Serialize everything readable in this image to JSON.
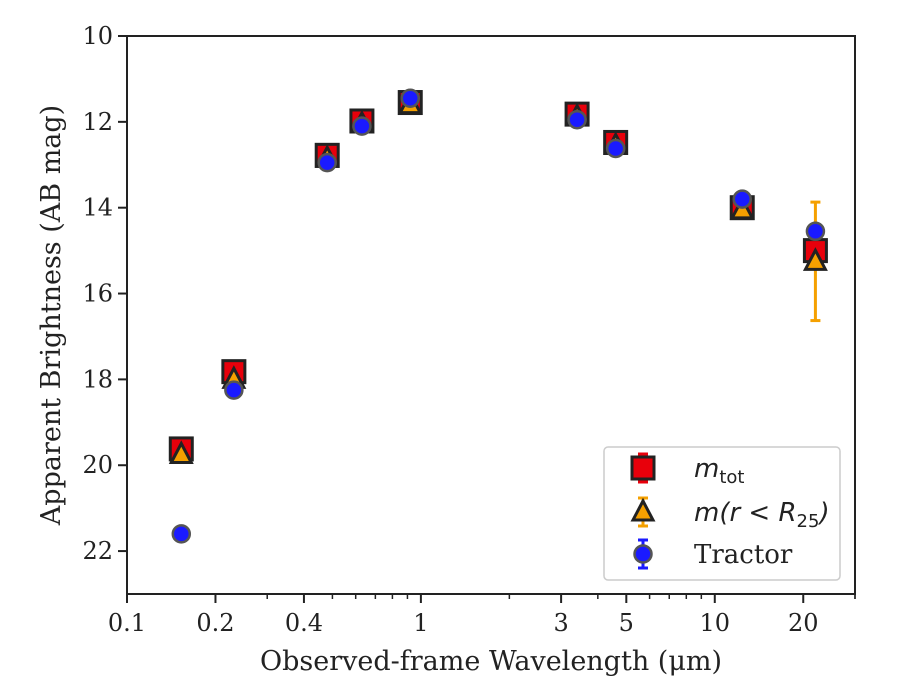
{
  "chart_data": {
    "type": "scatter",
    "xlabel": "Observed-frame Wavelength (μm)",
    "ylabel": "Apparent Brightness (AB mag)",
    "xscale": "log",
    "yinverted": true,
    "xlim": [
      0.1,
      30
    ],
    "ylim": [
      10,
      23
    ],
    "xticks": [
      0.1,
      0.2,
      0.4,
      1,
      3,
      5,
      10,
      20
    ],
    "xtick_labels": [
      "0.1",
      "0.2",
      "0.4",
      "1",
      "3",
      "5",
      "10",
      "20"
    ],
    "yticks": [
      10,
      12,
      14,
      16,
      18,
      20,
      22
    ],
    "ytick_labels": [
      "10",
      "12",
      "14",
      "16",
      "18",
      "20",
      "22"
    ],
    "legend_position": "lower right",
    "series": [
      {
        "name": "m_tot",
        "legend_main": "m",
        "legend_sub": "tot",
        "legend_tail": "",
        "marker": "square",
        "color": "#e8000b",
        "edge": "#222222",
        "x": [
          0.153,
          0.231,
          0.48,
          0.63,
          0.92,
          3.4,
          4.6,
          12.4,
          22.0
        ],
        "y": [
          19.62,
          17.82,
          12.78,
          11.98,
          11.55,
          11.82,
          12.48,
          14.0,
          15.0
        ],
        "yerr": [
          0.05,
          0.05,
          0.03,
          0.03,
          0.03,
          0.03,
          0.03,
          0.05,
          0.1
        ]
      },
      {
        "name": "m(r < R25)",
        "legend_main": "m(r < R",
        "legend_sub": "25",
        "legend_tail": ")",
        "marker": "triangle",
        "color": "#f5a000",
        "edge": "#222222",
        "x": [
          0.153,
          0.231,
          0.48,
          0.63,
          0.92,
          3.4,
          4.6,
          12.4,
          22.0
        ],
        "y": [
          19.75,
          18.0,
          12.85,
          12.05,
          11.6,
          11.88,
          12.55,
          14.05,
          15.25
        ],
        "yerr": [
          0.05,
          0.05,
          0.03,
          0.03,
          0.03,
          0.03,
          0.03,
          0.05,
          1.38
        ]
      },
      {
        "name": "Tractor",
        "legend_main": "Tractor",
        "legend_sub": "",
        "legend_tail": "",
        "marker": "circle",
        "color": "#1a1aff",
        "edge": "#555555",
        "x": [
          0.153,
          0.231,
          0.48,
          0.63,
          0.92,
          3.4,
          4.6,
          12.4,
          22.0
        ],
        "y": [
          21.6,
          18.25,
          12.95,
          12.1,
          11.45,
          11.95,
          12.62,
          13.8,
          14.55
        ],
        "yerr": [
          0.05,
          0.05,
          0.03,
          0.03,
          0.03,
          0.03,
          0.03,
          0.05,
          0.1
        ]
      }
    ]
  }
}
